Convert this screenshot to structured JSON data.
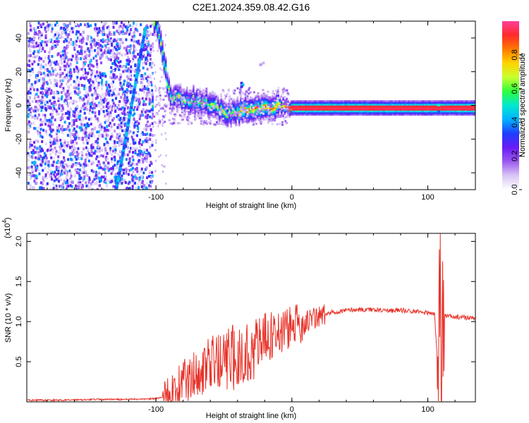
{
  "title": "C2E1.2024.359.08.42.G16",
  "chart_data": [
    {
      "type": "heatmap",
      "xlabel": "Height of straight line (km)",
      "ylabel": "Frequency (Hz)",
      "xlim": [
        -195,
        135
      ],
      "ylim": [
        -50,
        50
      ],
      "xticks": [
        -100,
        0,
        100
      ],
      "yticks": [
        -40,
        -20,
        0,
        20,
        40
      ],
      "description_series": [
        {
          "name": "",
          "x": [
            -130,
            -128,
            -126,
            -124,
            -122,
            -120,
            -118,
            -116,
            -114,
            -112,
            -110,
            -108,
            -106,
            -104,
            -102,
            -100,
            -90,
            -80,
            -70,
            -60,
            -50,
            -40,
            -30,
            -20,
            -10,
            0,
            20,
            40,
            60,
            80,
            100,
            110,
            120,
            135
          ],
          "y": [
            -50,
            -42,
            -33,
            -24,
            -15,
            -6,
            3,
            12,
            21,
            30,
            39,
            48,
            50,
            50,
            50,
            50,
            5,
            4,
            3,
            0,
            -4,
            -3,
            -2,
            -1,
            0,
            -1,
            -1,
            -1,
            -1,
            -1,
            -1,
            -1,
            -1,
            -1
          ]
        }
      ],
      "colorbar": {
        "label": "Normalized spectral amplitude",
        "ticks": [
          "0.0",
          "0.2",
          "0.4",
          "0.6",
          "0.8"
        ],
        "range": [
          0,
          1
        ],
        "colors": [
          "#ffffff",
          "#d9c6f5",
          "#9b59f0",
          "#6a1bf5",
          "#1f3dff",
          "#00b2ff",
          "#00e8d0",
          "#2dff3d",
          "#c8ff2d",
          "#ffd400",
          "#ff7a00",
          "#ff2a2a",
          "#ff3e9a"
        ]
      },
      "main_line_color": "#ff2a2a"
    },
    {
      "type": "line",
      "xlabel": "Height of straight line (km)",
      "ylabel": "SNR (10 * v/v)",
      "multiplier_label": "(x10",
      "multiplier_exp": "4",
      "xlim": [
        -195,
        135
      ],
      "ylim": [
        0,
        2.1
      ],
      "xticks": [
        -100,
        0,
        100
      ],
      "yticks": [
        "0.5",
        "1.0",
        "1.5",
        "2.0"
      ],
      "series": [
        {
          "name": "",
          "color": "#e8332a",
          "x": [
            -195,
            -170,
            -150,
            -120,
            -100,
            -95,
            -90,
            -85,
            -80,
            -75,
            -70,
            -65,
            -60,
            -55,
            -50,
            -45,
            -40,
            -35,
            -30,
            -25,
            -20,
            -15,
            -10,
            -5,
            0,
            5,
            10,
            15,
            20,
            25,
            30,
            40,
            50,
            60,
            70,
            80,
            90,
            100,
            105,
            108,
            109,
            110,
            111,
            112,
            115,
            120,
            130,
            135
          ],
          "y": [
            0.02,
            0.02,
            0.03,
            0.03,
            0.04,
            0.06,
            0.1,
            0.16,
            0.25,
            0.3,
            0.38,
            0.42,
            0.45,
            0.5,
            0.48,
            0.55,
            0.55,
            0.58,
            0.64,
            0.7,
            0.78,
            0.82,
            0.87,
            0.9,
            0.93,
            0.97,
            1.0,
            1.03,
            1.06,
            1.09,
            1.12,
            1.14,
            1.15,
            1.15,
            1.14,
            1.14,
            1.13,
            1.11,
            1.1,
            0.2,
            2.05,
            0.2,
            1.08,
            1.07,
            1.07,
            1.06,
            1.05,
            1.04
          ]
        }
      ]
    }
  ]
}
